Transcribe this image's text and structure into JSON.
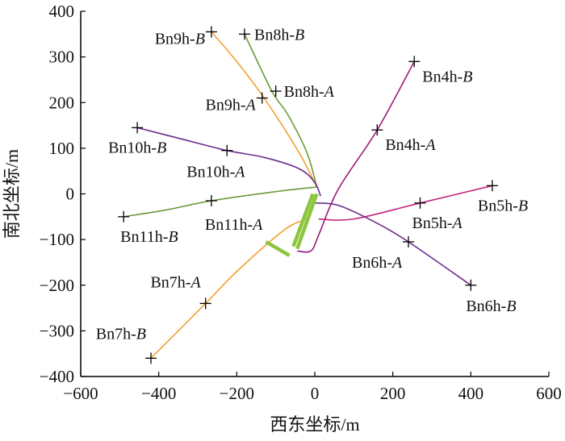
{
  "chart_data": {
    "type": "line",
    "xlabel": "西东坐标/m",
    "ylabel": "南北坐标/m",
    "xlim": [
      -600,
      600
    ],
    "ylim": [
      -400,
      400
    ],
    "xticks": [
      -600,
      -400,
      -200,
      0,
      200,
      400,
      600
    ],
    "yticks": [
      -400,
      -300,
      -200,
      -100,
      0,
      100,
      200,
      300,
      400
    ],
    "grid": false,
    "wells": [
      {
        "name": "Bn9h",
        "color": "#f5a033",
        "path": [
          [
            5,
            15
          ],
          [
            -40,
            90
          ],
          [
            -130,
            210
          ],
          [
            -200,
            290
          ],
          [
            -265,
            355
          ]
        ],
        "markers": [
          {
            "label": "Bn9h-B",
            "x": -265,
            "y": 355
          },
          {
            "label": "Bn9h-A",
            "x": -135,
            "y": 210
          }
        ]
      },
      {
        "name": "Bn8h",
        "color": "#6b9a3a",
        "path": [
          [
            5,
            15
          ],
          [
            -20,
            90
          ],
          [
            -70,
            175
          ],
          [
            -110,
            225
          ],
          [
            -180,
            350
          ]
        ],
        "markers": [
          {
            "label": "Bn8h-B",
            "x": -180,
            "y": 350
          },
          {
            "label": "Bn8h-A",
            "x": -100,
            "y": 225
          }
        ]
      },
      {
        "name": "Bn10h",
        "color": "#6a2c8e",
        "path": [
          [
            15,
            -5
          ],
          [
            0,
            25
          ],
          [
            -40,
            55
          ],
          [
            -130,
            80
          ],
          [
            -225,
            95
          ],
          [
            -340,
            120
          ],
          [
            -455,
            145
          ]
        ],
        "markers": [
          {
            "label": "Bn10h-B",
            "x": -455,
            "y": 145
          },
          {
            "label": "Bn10h-A",
            "x": -225,
            "y": 95
          }
        ]
      },
      {
        "name": "Bn11h",
        "color": "#6b9a3a",
        "path": [
          [
            5,
            15
          ],
          [
            -100,
            5
          ],
          [
            -265,
            -15
          ],
          [
            -380,
            -35
          ],
          [
            -490,
            -50
          ]
        ],
        "markers": [
          {
            "label": "Bn11h-B",
            "x": -490,
            "y": -50
          },
          {
            "label": "Bn11h-A",
            "x": -265,
            "y": -15
          }
        ]
      },
      {
        "name": "Bn7h",
        "color": "#f5a033",
        "path": [
          [
            -20,
            -55
          ],
          [
            -80,
            -80
          ],
          [
            -200,
            -170
          ],
          [
            -280,
            -240
          ],
          [
            -420,
            -360
          ]
        ],
        "markers": [
          {
            "label": "Bn7h-B",
            "x": -420,
            "y": -360
          },
          {
            "label": "Bn7h-A",
            "x": -280,
            "y": -240
          }
        ]
      },
      {
        "name": "Bn4h",
        "color": "#9a1a7e",
        "path": [
          [
            -45,
            -125
          ],
          [
            -10,
            -125
          ],
          [
            10,
            -90
          ],
          [
            60,
            10
          ],
          [
            160,
            140
          ],
          [
            255,
            290
          ]
        ],
        "markers": [
          {
            "label": "Bn4h-B",
            "x": 255,
            "y": 290
          },
          {
            "label": "Bn4h-A",
            "x": 160,
            "y": 140
          }
        ]
      },
      {
        "name": "Bn5h",
        "color": "#c0267e",
        "path": [
          [
            10,
            -55
          ],
          [
            100,
            -55
          ],
          [
            270,
            -20
          ],
          [
            455,
            18
          ]
        ],
        "markers": [
          {
            "label": "Bn5h-B",
            "x": 455,
            "y": 18
          },
          {
            "label": "Bn5h-A",
            "x": 270,
            "y": -20
          }
        ]
      },
      {
        "name": "Bn6h",
        "color": "#6a2c8e",
        "path": [
          [
            0,
            -20
          ],
          [
            60,
            -25
          ],
          [
            150,
            -60
          ],
          [
            240,
            -105
          ],
          [
            400,
            -200
          ]
        ],
        "markers": [
          {
            "label": "Bn6h-B",
            "x": 400,
            "y": -200
          },
          {
            "label": "Bn6h-A",
            "x": 240,
            "y": -105
          }
        ]
      }
    ],
    "thick_segments": [
      {
        "color": "#8cc63f",
        "from": [
          -55,
          -115
        ],
        "to": [
          -5,
          0
        ]
      },
      {
        "color": "#8cc63f",
        "from": [
          -45,
          -120
        ],
        "to": [
          5,
          0
        ]
      },
      {
        "color": "#8cc63f",
        "from": [
          -125,
          -105
        ],
        "to": [
          -65,
          -135
        ]
      }
    ]
  }
}
